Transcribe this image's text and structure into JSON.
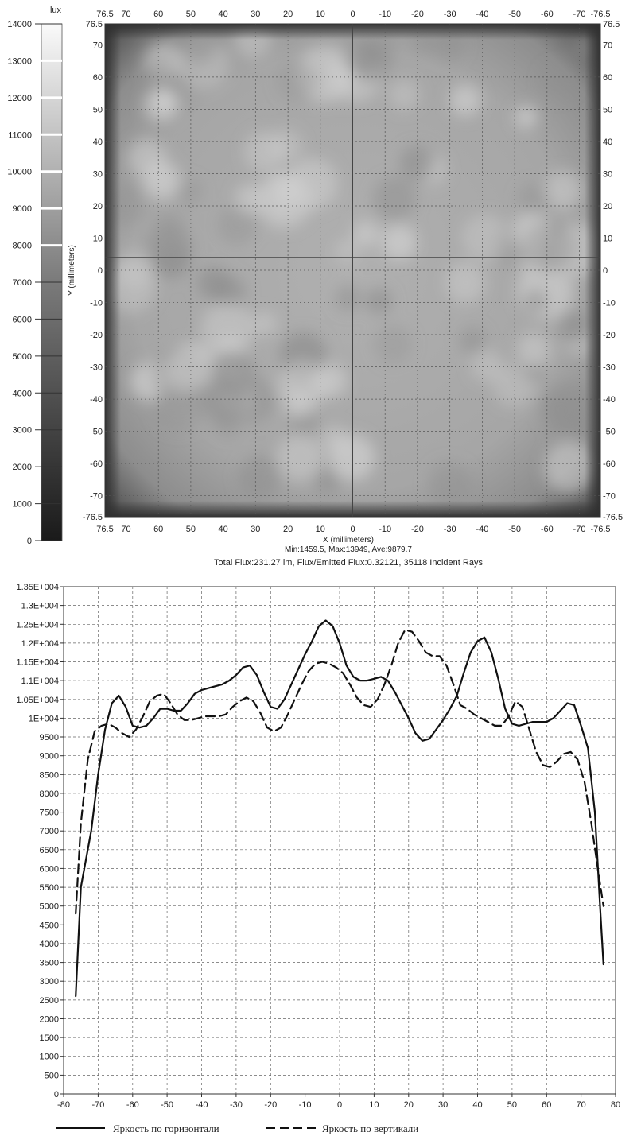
{
  "chart_data": [
    {
      "type": "heatmap",
      "title": "",
      "xlabel": "X (millimeters)",
      "ylabel": "Y (millimeters)",
      "xlim": [
        76.5,
        -76.5
      ],
      "ylim": [
        -76.5,
        76.5
      ],
      "x_ticks": [
        "76.5",
        "70",
        "60",
        "50",
        "40",
        "30",
        "20",
        "10",
        "0",
        "-10",
        "-20",
        "-30",
        "-40",
        "-50",
        "-60",
        "-70",
        "-76.5"
      ],
      "y_ticks": [
        "76.5",
        "70",
        "60",
        "50",
        "40",
        "30",
        "20",
        "10",
        "0",
        "-10",
        "-20",
        "-30",
        "-40",
        "-50",
        "-60",
        "-70",
        "-76.5"
      ],
      "grid": true,
      "crosshair": {
        "x": 0,
        "y": 4
      },
      "colorbar": {
        "unit": "lux",
        "min": 0,
        "max": 14000,
        "ticks": [
          "14000",
          "13000",
          "12000",
          "11000",
          "10000",
          "9000",
          "8000",
          "7000",
          "6000",
          "5000",
          "4000",
          "3000",
          "2000",
          "1000",
          "0"
        ]
      },
      "stats_line": "Min:1459.5, Max:13949, Ave:9879.7",
      "flux_line": "Total Flux:231.27 lm, Flux/Emitted Flux:0.32121, 35118 Incident Rays",
      "colors": {
        "field_mid": "#a9a9a9",
        "field_edge": "#3a3a3a",
        "grid": "#555555"
      }
    },
    {
      "type": "line",
      "title": "",
      "xlim": [
        -80,
        80
      ],
      "ylim": [
        0,
        13500
      ],
      "x_ticks": [
        "-80",
        "-70",
        "-60",
        "-50",
        "-40",
        "-30",
        "-20",
        "-10",
        "0",
        "10",
        "20",
        "30",
        "40",
        "50",
        "60",
        "70",
        "80"
      ],
      "y_ticks": [
        "1.35E+004",
        "1.3E+004",
        "1.25E+004",
        "1.2E+004",
        "1.15E+004",
        "1.1E+004",
        "1.05E+004",
        "1E+004",
        "9500",
        "9000",
        "8500",
        "8000",
        "7500",
        "7000",
        "6500",
        "6000",
        "5500",
        "5000",
        "4500",
        "4000",
        "3500",
        "3000",
        "2500",
        "2000",
        "1500",
        "1000",
        "500",
        "0"
      ],
      "grid": true,
      "legend_position": "bottom",
      "series": [
        {
          "name": "Яркость по горизонтали",
          "dash": "solid",
          "points": [
            [
              -76.5,
              2600
            ],
            [
              -75,
              5500
            ],
            [
              -72,
              7000
            ],
            [
              -70,
              8500
            ],
            [
              -68,
              9700
            ],
            [
              -66,
              10400
            ],
            [
              -64,
              10600
            ],
            [
              -62,
              10300
            ],
            [
              -60,
              9800
            ],
            [
              -58,
              9750
            ],
            [
              -56,
              9800
            ],
            [
              -54,
              10000
            ],
            [
              -52,
              10250
            ],
            [
              -50,
              10250
            ],
            [
              -48,
              10200
            ],
            [
              -46,
              10200
            ],
            [
              -44,
              10400
            ],
            [
              -42,
              10650
            ],
            [
              -40,
              10750
            ],
            [
              -38,
              10800
            ],
            [
              -36,
              10850
            ],
            [
              -34,
              10900
            ],
            [
              -32,
              11000
            ],
            [
              -30,
              11150
            ],
            [
              -28,
              11350
            ],
            [
              -26,
              11400
            ],
            [
              -24,
              11150
            ],
            [
              -22,
              10700
            ],
            [
              -20,
              10300
            ],
            [
              -18,
              10250
            ],
            [
              -16,
              10500
            ],
            [
              -14,
              10900
            ],
            [
              -12,
              11300
            ],
            [
              -10,
              11700
            ],
            [
              -8,
              12050
            ],
            [
              -6,
              12450
            ],
            [
              -4,
              12600
            ],
            [
              -2,
              12450
            ],
            [
              0,
              12000
            ],
            [
              2,
              11400
            ],
            [
              4,
              11100
            ],
            [
              6,
              11000
            ],
            [
              8,
              11000
            ],
            [
              10,
              11050
            ],
            [
              12,
              11100
            ],
            [
              14,
              11000
            ],
            [
              16,
              10700
            ],
            [
              18,
              10350
            ],
            [
              20,
              10000
            ],
            [
              22,
              9600
            ],
            [
              24,
              9400
            ],
            [
              26,
              9450
            ],
            [
              28,
              9700
            ],
            [
              30,
              9950
            ],
            [
              32,
              10250
            ],
            [
              34,
              10600
            ],
            [
              36,
              11200
            ],
            [
              38,
              11750
            ],
            [
              40,
              12050
            ],
            [
              42,
              12150
            ],
            [
              44,
              11750
            ],
            [
              46,
              11050
            ],
            [
              48,
              10250
            ],
            [
              50,
              9850
            ],
            [
              52,
              9800
            ],
            [
              54,
              9850
            ],
            [
              56,
              9900
            ],
            [
              58,
              9900
            ],
            [
              60,
              9900
            ],
            [
              62,
              10000
            ],
            [
              64,
              10200
            ],
            [
              66,
              10400
            ],
            [
              68,
              10350
            ],
            [
              70,
              9800
            ],
            [
              72,
              9200
            ],
            [
              74,
              7500
            ],
            [
              75.5,
              5000
            ],
            [
              76.5,
              3450
            ]
          ]
        },
        {
          "name": "Яркость по вертикали",
          "dash": "dashed",
          "points": [
            [
              -76.5,
              4800
            ],
            [
              -75,
              7200
            ],
            [
              -73,
              8900
            ],
            [
              -71,
              9650
            ],
            [
              -69,
              9800
            ],
            [
              -67,
              9850
            ],
            [
              -65,
              9750
            ],
            [
              -63,
              9600
            ],
            [
              -61,
              9500
            ],
            [
              -59,
              9700
            ],
            [
              -57,
              10050
            ],
            [
              -55,
              10450
            ],
            [
              -53,
              10600
            ],
            [
              -51,
              10650
            ],
            [
              -49,
              10400
            ],
            [
              -47,
              10100
            ],
            [
              -45,
              9950
            ],
            [
              -43,
              9950
            ],
            [
              -41,
              10000
            ],
            [
              -39,
              10050
            ],
            [
              -37,
              10050
            ],
            [
              -35,
              10050
            ],
            [
              -33,
              10100
            ],
            [
              -31,
              10300
            ],
            [
              -29,
              10450
            ],
            [
              -27,
              10550
            ],
            [
              -25,
              10450
            ],
            [
              -23,
              10150
            ],
            [
              -21,
              9750
            ],
            [
              -19,
              9650
            ],
            [
              -17,
              9750
            ],
            [
              -15,
              10100
            ],
            [
              -13,
              10500
            ],
            [
              -11,
              10900
            ],
            [
              -9,
              11250
            ],
            [
              -7,
              11450
            ],
            [
              -5,
              11500
            ],
            [
              -3,
              11450
            ],
            [
              -1,
              11350
            ],
            [
              1,
              11200
            ],
            [
              3,
              10900
            ],
            [
              5,
              10550
            ],
            [
              7,
              10350
            ],
            [
              9,
              10300
            ],
            [
              11,
              10500
            ],
            [
              13,
              10900
            ],
            [
              15,
              11400
            ],
            [
              17,
              12000
            ],
            [
              19,
              12350
            ],
            [
              21,
              12300
            ],
            [
              23,
              12050
            ],
            [
              25,
              11750
            ],
            [
              27,
              11650
            ],
            [
              29,
              11650
            ],
            [
              31,
              11400
            ],
            [
              33,
              10900
            ],
            [
              35,
              10350
            ],
            [
              37,
              10250
            ],
            [
              39,
              10100
            ],
            [
              41,
              10000
            ],
            [
              43,
              9900
            ],
            [
              45,
              9800
            ],
            [
              47,
              9800
            ],
            [
              49,
              10050
            ],
            [
              51,
              10450
            ],
            [
              53,
              10300
            ],
            [
              55,
              9700
            ],
            [
              57,
              9100
            ],
            [
              59,
              8750
            ],
            [
              61,
              8700
            ],
            [
              63,
              8850
            ],
            [
              65,
              9050
            ],
            [
              67,
              9100
            ],
            [
              69,
              8900
            ],
            [
              71,
              8300
            ],
            [
              73,
              7200
            ],
            [
              75,
              5900
            ],
            [
              76.5,
              5000
            ]
          ]
        }
      ]
    }
  ]
}
